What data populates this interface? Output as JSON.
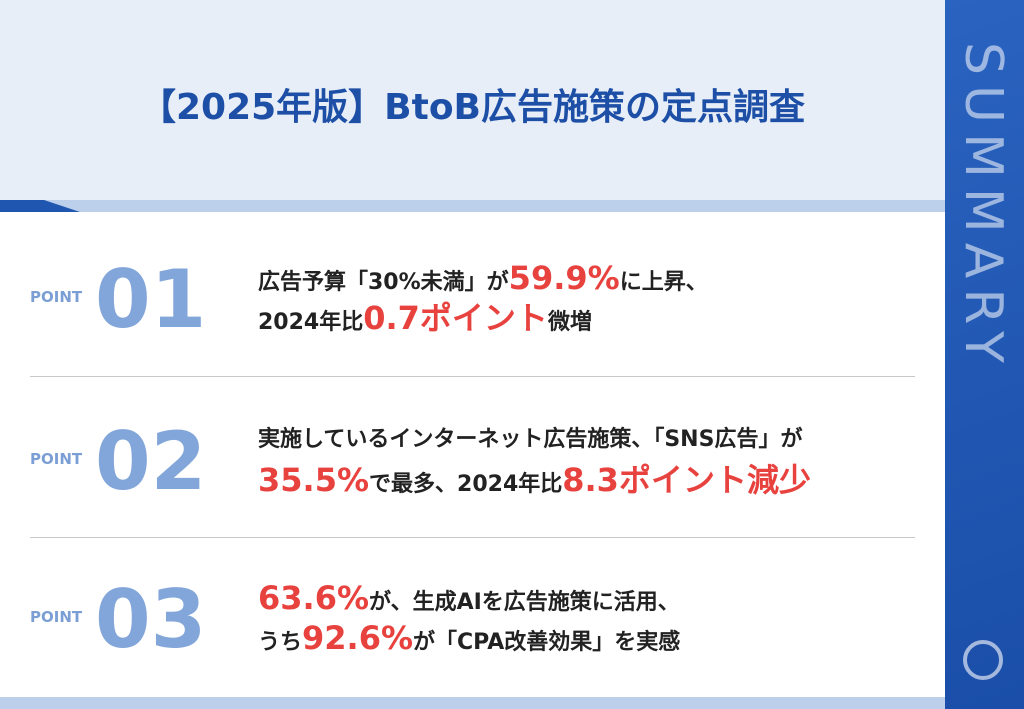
{
  "title": "【2025年版】BtoB広告施策の定点調査",
  "side_label": "SUMMARY",
  "points": [
    {
      "label": "POINT",
      "number": "01",
      "lines": [
        [
          {
            "text": "広告予算「30%未満」が",
            "highlight": false
          },
          {
            "text": "59.9%",
            "highlight": true
          },
          {
            "text": "に上昇、",
            "highlight": false
          }
        ],
        [
          {
            "text": "2024年比",
            "highlight": false
          },
          {
            "text": "0.7ポイント",
            "highlight": true
          },
          {
            "text": "微増",
            "highlight": false
          }
        ]
      ]
    },
    {
      "label": "POINT",
      "number": "02",
      "lines": [
        [
          {
            "text": "実施しているインターネット広告施策、「SNS広告」が",
            "highlight": false
          }
        ],
        [
          {
            "text": "35.5%",
            "highlight": true
          },
          {
            "text": "で最多、2024年比",
            "highlight": false
          },
          {
            "text": "8.3ポイント減少",
            "highlight": true
          }
        ]
      ]
    },
    {
      "label": "POINT",
      "number": "03",
      "lines": [
        [
          {
            "text": "63.6%",
            "highlight": true
          },
          {
            "text": "が、生成AIを広告施策に活用、",
            "highlight": false
          }
        ],
        [
          {
            "text": "うち",
            "highlight": false
          },
          {
            "text": "92.6%",
            "highlight": true
          },
          {
            "text": "が「CPA改善効果」を実感",
            "highlight": false
          }
        ]
      ]
    }
  ]
}
